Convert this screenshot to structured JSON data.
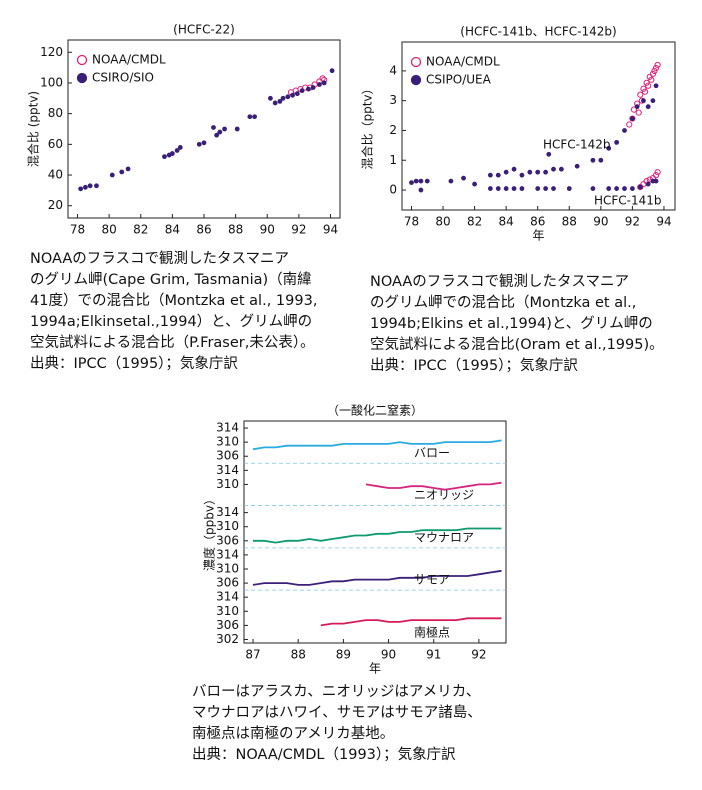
{
  "chart_data": [
    {
      "type": "scatter",
      "title": "(HCFC-22)",
      "ylabel": "混合比 (pptv)",
      "xlim": [
        77.4,
        94.6
      ],
      "xticks": [
        78,
        80,
        82,
        84,
        86,
        88,
        90,
        92,
        94
      ],
      "ylim": [
        12,
        128
      ],
      "yticks": [
        20,
        40,
        60,
        80,
        100,
        120
      ],
      "legend": "upper left",
      "series": [
        {
          "name": "NOAA/CMDL",
          "color": "#e0207a",
          "marker": "open",
          "x": [
            91.5,
            91.8,
            92.1,
            92.4,
            92.7,
            93.0,
            93.3,
            93.5,
            93.6
          ],
          "values": [
            94,
            95,
            96,
            97,
            97,
            99,
            101,
            103,
            102
          ]
        },
        {
          "name": "CSIRO/SIO",
          "color": "#3a1f78",
          "marker": "filled",
          "x": [
            78.2,
            78.5,
            78.8,
            79.2,
            80.2,
            80.8,
            81.2,
            83.5,
            83.8,
            84.0,
            84.3,
            84.5,
            85.7,
            86.0,
            86.6,
            86.8,
            87.0,
            87.3,
            88.1,
            88.9,
            89.2,
            90.2,
            90.5,
            90.8,
            91.0,
            91.3,
            91.6,
            91.9,
            92.2,
            92.6,
            92.9,
            93.3,
            93.6,
            94.1
          ],
          "values": [
            31,
            32,
            33,
            33,
            40,
            42,
            44,
            52,
            53,
            54,
            56,
            58,
            60,
            61,
            71,
            66,
            68,
            70,
            70,
            78,
            78,
            90,
            87,
            88,
            90,
            91,
            92,
            93,
            95,
            96,
            97,
            99,
            100,
            108
          ]
        }
      ],
      "caption": [
        "NOAAのフラスコで観測したタスマニア",
        "のグリム岬(Cape Grim, Tasmania)（南緯",
        "41度）での混合比（Montzka et al., 1993,",
        "1994a;Elkinsetal.,1994）と、グリム岬の",
        "空気試料による混合比（P.Fraser,未公表）。",
        "出典：IPCC（1995）；気象庁訳"
      ]
    },
    {
      "type": "scatter",
      "title": "(HCFC-141b、HCFC-142b)",
      "xlabel": "年",
      "ylabel": "混合比（pptv）",
      "xlim": [
        77.4,
        94.7
      ],
      "xticks": [
        78,
        80,
        82,
        84,
        86,
        88,
        90,
        92,
        94
      ],
      "ylim": [
        -0.67,
        4.97
      ],
      "yticks": [
        0,
        1,
        2,
        3,
        4
      ],
      "legend": "upper left",
      "annotations": [
        "HCFC-142b",
        "HCFC-141b"
      ],
      "series": [
        {
          "name": "NOAA/CMDL",
          "color": "#e0207a",
          "marker": "open",
          "x": [
            91.8,
            92.0,
            92.1,
            92.3,
            92.4,
            92.5,
            92.6,
            92.7,
            92.8,
            92.9,
            93.0,
            93.1,
            93.2,
            93.3,
            93.4,
            93.5,
            93.6,
            92.5,
            92.7,
            92.9,
            93.1,
            93.3,
            93.5,
            93.6
          ],
          "values": [
            2.2,
            2.4,
            2.7,
            2.9,
            2.6,
            3.2,
            3.0,
            3.4,
            3.3,
            3.6,
            3.5,
            3.8,
            3.7,
            3.9,
            4.0,
            4.1,
            4.2,
            0.1,
            0.2,
            0.3,
            0.35,
            0.4,
            0.5,
            0.6
          ]
        },
        {
          "name": "CSIPO/UEA",
          "color": "#3a1f78",
          "marker": "filled",
          "x": [
            78.0,
            78.3,
            78.6,
            79.0,
            80.5,
            81.3,
            82.0,
            83.0,
            83.5,
            84.0,
            84.5,
            85.0,
            85.5,
            86.0,
            86.5,
            86.7,
            87.0,
            87.5,
            88.5,
            89.5,
            90.0,
            90.5,
            91.0,
            91.5,
            92.0,
            92.3,
            92.7,
            93.0,
            93.3,
            93.5,
            78.6,
            83.0,
            83.5,
            84.0,
            84.5,
            85.0,
            86.0,
            86.5,
            87.0,
            88.0,
            89.5,
            90.5,
            91.0,
            91.5,
            92.0,
            92.5,
            93.0,
            93.3,
            93.5
          ],
          "values": [
            0.25,
            0.3,
            0.3,
            0.3,
            0.3,
            0.4,
            0.2,
            0.5,
            0.5,
            0.6,
            0.7,
            0.5,
            0.6,
            0.6,
            0.6,
            1.2,
            0.7,
            0.7,
            0.8,
            1.0,
            1.0,
            1.4,
            1.6,
            2.0,
            2.4,
            2.8,
            3.0,
            2.8,
            3.0,
            3.5,
            0.0,
            0.05,
            0.05,
            0.05,
            0.05,
            0.05,
            0.05,
            0.05,
            0.05,
            0.05,
            0.05,
            0.05,
            0.05,
            0.05,
            0.05,
            0.1,
            0.2,
            0.3,
            0.3
          ]
        }
      ],
      "caption": [
        "NOAAのフラスコで観測したタスマニア",
        "のグリム岬での混合比（Montzka et al.,",
        "1994b;Elkins et al.,1994)と、グリム岬の",
        "空気試料による混合比(Oram et al.,1995)。",
        "出典：IPCC（1995）；気象庁訳"
      ]
    },
    {
      "type": "line",
      "title": "（一酸化二窒素）",
      "xlabel": "年",
      "ylabel": "濃度（ppbv）",
      "xlim": [
        86.8,
        92.6
      ],
      "xticks": [
        87,
        88,
        89,
        90,
        91,
        92
      ],
      "panels": [
        {
          "name": "バロー",
          "color": "#29abe2",
          "ylim": [
            304,
            316
          ],
          "yticks": [
            314,
            310,
            306
          ],
          "x": [
            87.0,
            87.25,
            87.5,
            87.75,
            88.0,
            88.25,
            88.5,
            88.75,
            89.0,
            89.25,
            89.5,
            89.75,
            90.0,
            90.25,
            90.5,
            90.75,
            91.0,
            91.25,
            91.5,
            91.75,
            92.0,
            92.25,
            92.5
          ],
          "values": [
            308,
            308.5,
            308.5,
            309,
            309,
            309,
            309,
            309,
            309.5,
            309.5,
            309.5,
            309.5,
            309.5,
            310,
            309.5,
            309.5,
            309.5,
            310,
            310,
            310,
            310,
            310,
            310.5
          ]
        },
        {
          "name": "ニオリッジ",
          "color": "#d6257e",
          "ylim": [
            304,
            316
          ],
          "yticks": [
            314,
            310
          ],
          "x": [
            89.5,
            89.75,
            90.0,
            90.25,
            90.5,
            90.75,
            91.0,
            91.25,
            91.5,
            91.75,
            92.0,
            92.25,
            92.5
          ],
          "values": [
            310,
            309.5,
            309,
            309,
            309.5,
            309.5,
            309,
            308.5,
            309,
            309.5,
            310,
            310,
            310.5
          ]
        },
        {
          "name": "マウナロア",
          "color": "#0f9b6f",
          "ylim": [
            304,
            316
          ],
          "yticks": [
            314,
            310,
            306
          ],
          "x": [
            87.0,
            87.25,
            87.5,
            87.75,
            88.0,
            88.25,
            88.5,
            88.75,
            89.0,
            89.25,
            89.5,
            89.75,
            90.0,
            90.25,
            90.5,
            90.75,
            91.0,
            91.25,
            91.5,
            91.75,
            92.0,
            92.25,
            92.5
          ],
          "values": [
            306,
            306,
            305.5,
            306,
            306,
            306.5,
            306,
            306.5,
            307,
            307.5,
            307.5,
            308,
            308,
            308.5,
            308.5,
            309,
            309,
            309,
            309,
            309.5,
            309.5,
            309.5,
            309.5
          ]
        },
        {
          "name": "サモア",
          "color": "#3b1f7a",
          "ylim": [
            304,
            316
          ],
          "yticks": [
            314,
            310,
            306
          ],
          "x": [
            87.0,
            87.25,
            87.5,
            87.75,
            88.0,
            88.25,
            88.5,
            88.75,
            89.0,
            89.25,
            89.5,
            89.75,
            90.0,
            90.25,
            90.5,
            90.75,
            91.0,
            91.25,
            91.5,
            91.75,
            92.0,
            92.25,
            92.5
          ],
          "values": [
            305.5,
            306,
            306,
            306,
            305.5,
            305.5,
            306,
            306.5,
            306.5,
            307,
            307,
            307,
            307,
            307.5,
            307.5,
            307.5,
            308,
            308,
            308,
            308,
            308.5,
            309,
            309.5
          ]
        },
        {
          "name": "南極点",
          "color": "#d81b55",
          "ylim": [
            301,
            316
          ],
          "yticks": [
            314,
            310,
            306,
            302
          ],
          "x": [
            88.5,
            88.75,
            89.0,
            89.25,
            89.5,
            89.75,
            90.0,
            90.25,
            90.5,
            90.75,
            91.0,
            91.25,
            91.5,
            91.75,
            92.0,
            92.25,
            92.5
          ],
          "values": [
            306,
            306.5,
            306.5,
            307,
            307.5,
            307.5,
            307,
            307,
            307.5,
            307.5,
            307.5,
            307.5,
            307.5,
            308,
            308,
            308,
            308
          ]
        }
      ],
      "caption": [
        "バローはアラスカ、ニオリッジはアメリカ、",
        "マウナロアはハワイ、サモアはサモア諸島、",
        "南極点は南極のアメリカ基地。",
        "出典：NOAA/CMDL（1993）；気象庁訳"
      ]
    }
  ]
}
